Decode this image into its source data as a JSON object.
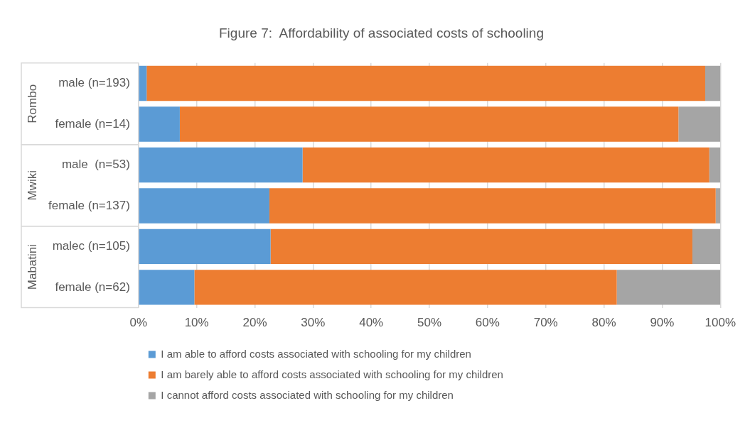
{
  "chart_data": {
    "type": "bar",
    "orientation": "horizontal",
    "stacked": true,
    "title": "Figure 7:  Affordability of associated costs of schooling",
    "categories": [
      "male (n=193)",
      "female (n=14)",
      "male  (n=53)",
      "female (n=137)",
      "malec (n=105)",
      "female (n=62)"
    ],
    "annotations": [
      "Rombo",
      "Mwiki",
      "Mabatini"
    ],
    "series": [
      {
        "name": "I am able to afford costs associated with schooling for my children",
        "color": "#5b9bd5",
        "values": [
          1.4,
          7.1,
          28.2,
          22.5,
          22.7,
          9.6
        ]
      },
      {
        "name": "I am barely able to afford costs associated with schooling for my children",
        "color": "#ed7d31",
        "values": [
          96.0,
          85.7,
          69.9,
          76.7,
          72.5,
          72.6
        ]
      },
      {
        "name": "I cannot afford costs associated with schooling for my children",
        "color": "#a5a5a5",
        "values": [
          2.6,
          7.2,
          1.9,
          0.8,
          4.8,
          17.8
        ]
      }
    ],
    "xlim": [
      0,
      100
    ],
    "xticks": [
      {
        "value": 0,
        "label": "0%"
      },
      {
        "value": 10,
        "label": "10%"
      },
      {
        "value": 20,
        "label": "20%"
      },
      {
        "value": 30,
        "label": "30%"
      },
      {
        "value": 40,
        "label": "40%"
      },
      {
        "value": 50,
        "label": "50%"
      },
      {
        "value": 60,
        "label": "60%"
      },
      {
        "value": 70,
        "label": "70%"
      },
      {
        "value": 80,
        "label": "80%"
      },
      {
        "value": 90,
        "label": "90%"
      },
      {
        "value": 100,
        "label": "100%"
      }
    ],
    "grid": "x",
    "legend": "bottom"
  }
}
